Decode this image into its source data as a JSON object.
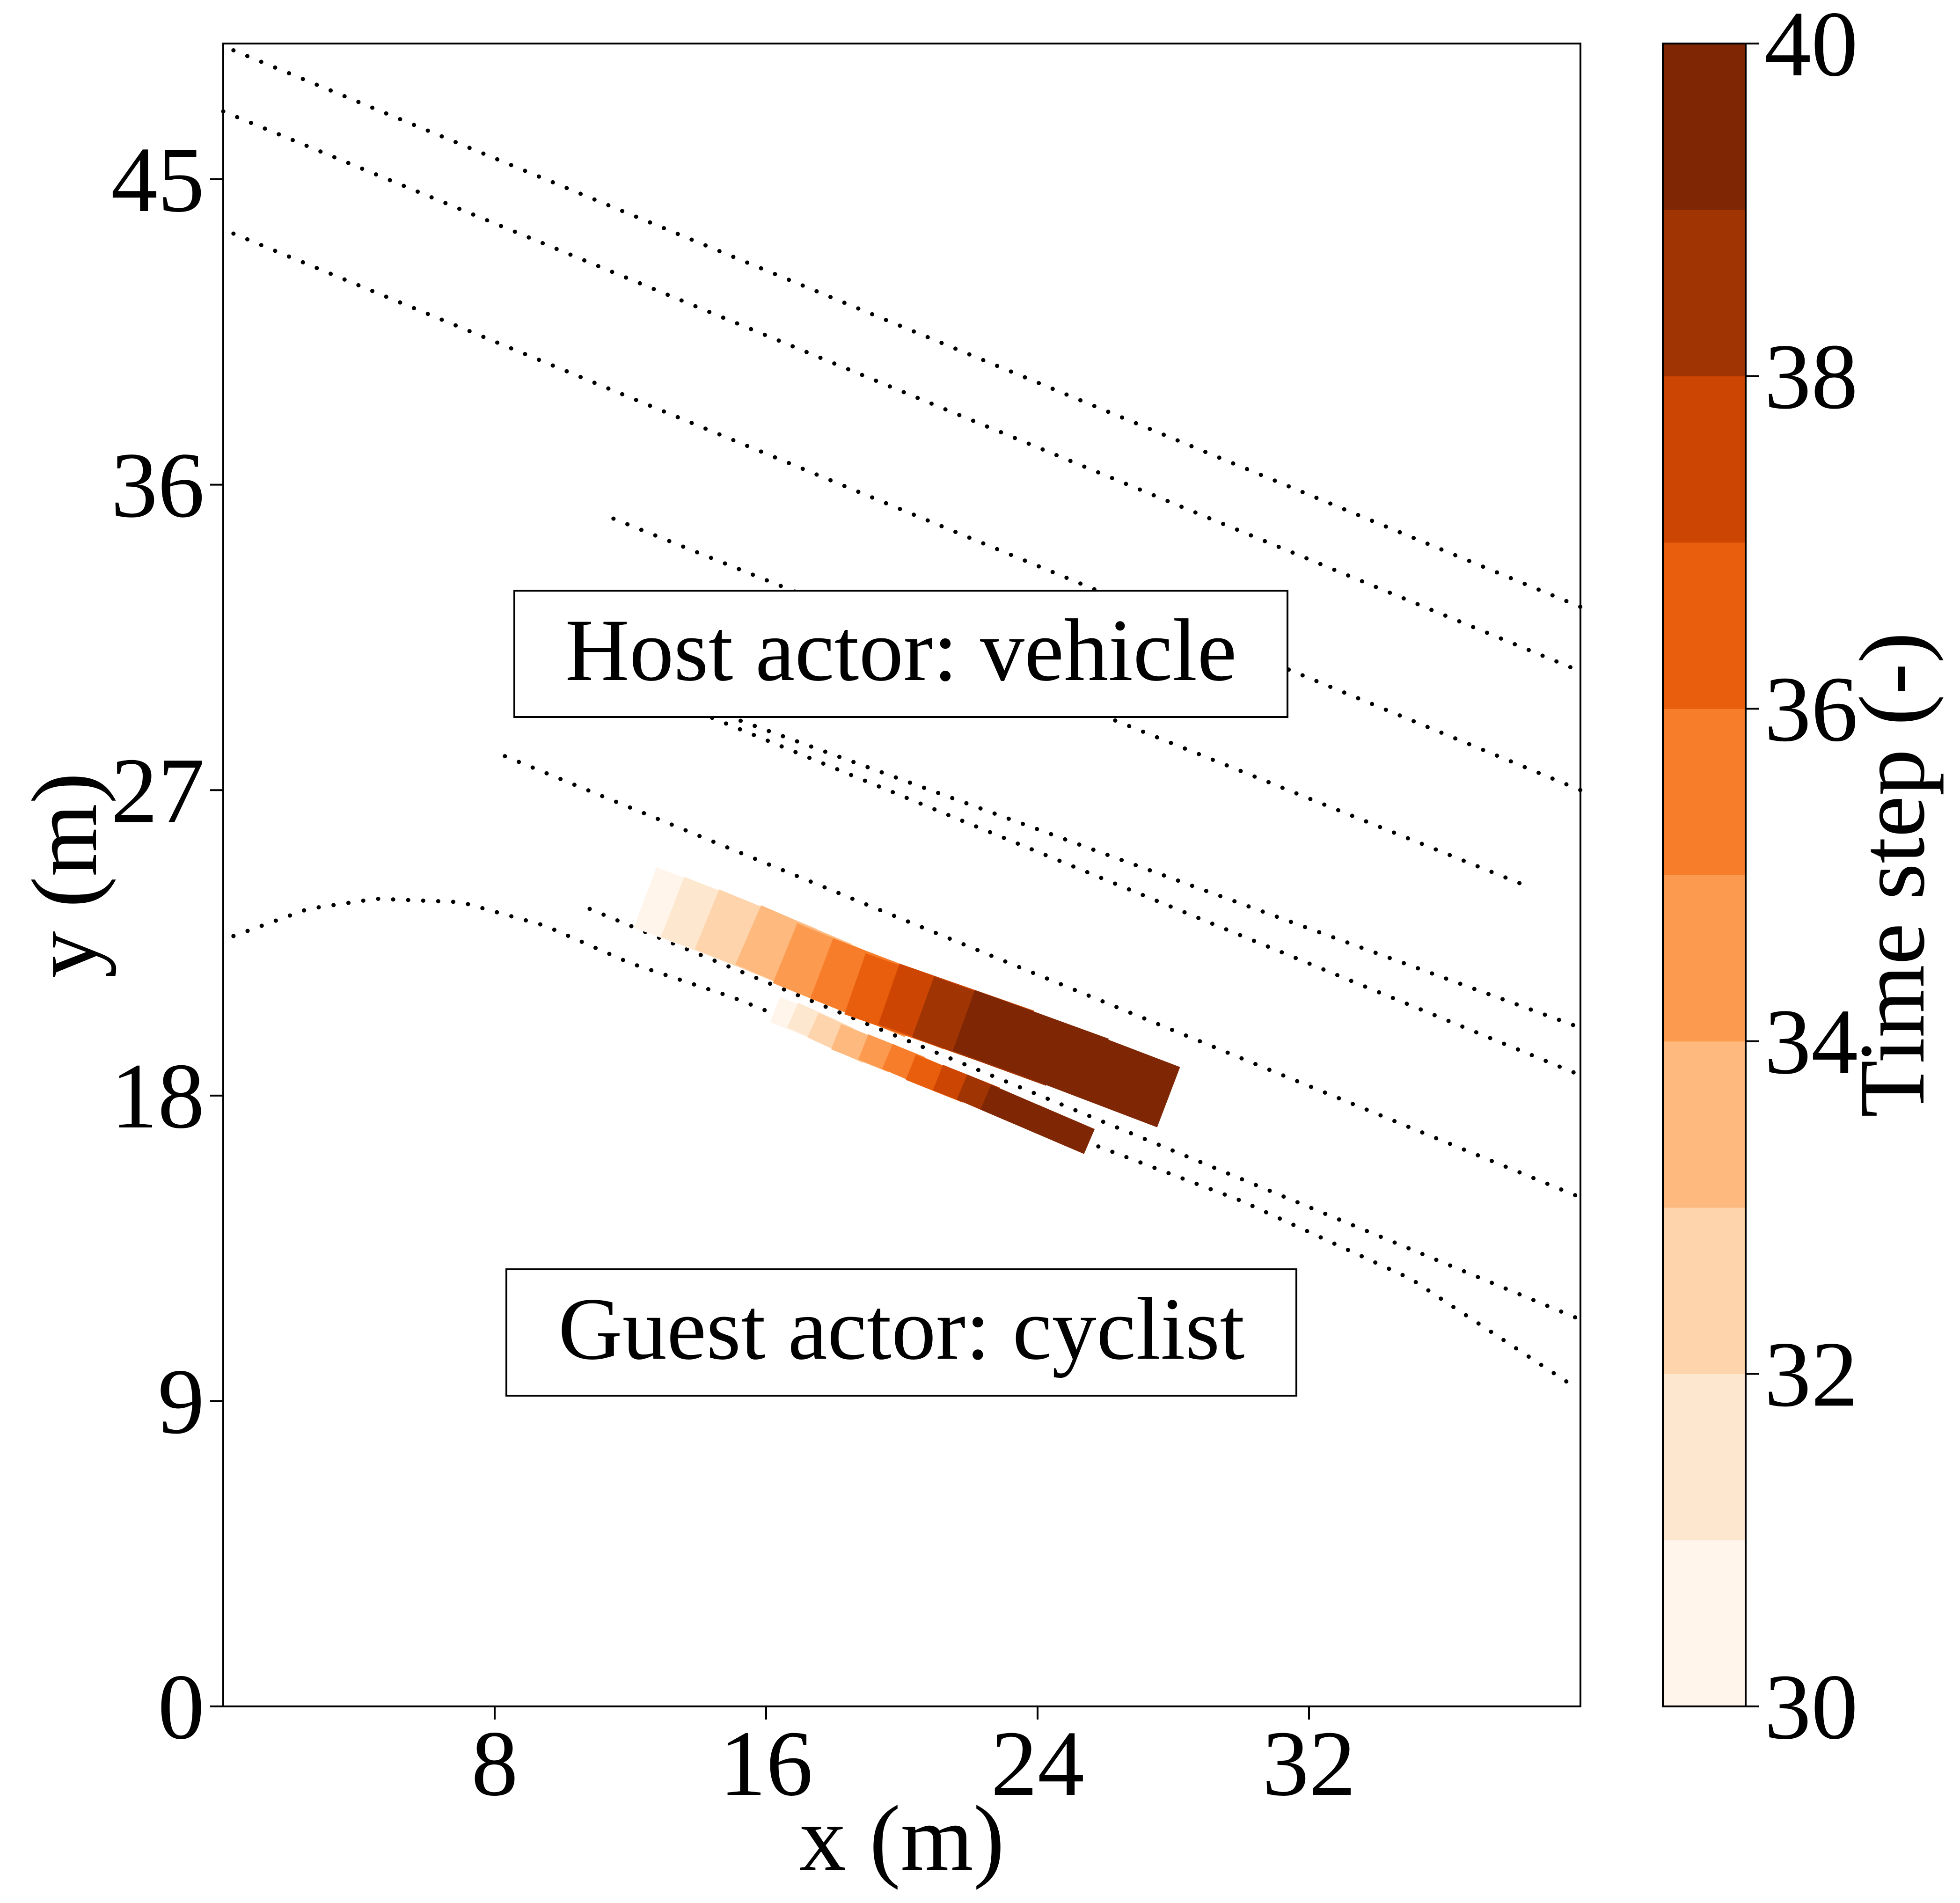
{
  "chart_data": {
    "type": "scatter",
    "title": "",
    "xlabel": "x (m)",
    "ylabel": "y (m)",
    "xlim": [
      0,
      40
    ],
    "ylim": [
      0,
      49
    ],
    "xticks": [
      8,
      16,
      24,
      32
    ],
    "yticks": [
      0,
      9,
      18,
      27,
      36,
      45
    ],
    "xtick_labels": [
      "8",
      "16",
      "24",
      "32"
    ],
    "ytick_labels": [
      "0",
      "9",
      "18",
      "27",
      "36",
      "45"
    ],
    "grid": false,
    "annotations": [
      {
        "text": "Host actor: vehicle",
        "x": 20,
        "y": 31.5
      },
      {
        "text": "Guest actor: cyclist",
        "x": 20,
        "y": 11.5
      }
    ],
    "road_lines": [
      {
        "name": "",
        "style": "dotted",
        "x": [
          0.3,
          40
        ],
        "y": [
          48.8,
          32.4
        ]
      },
      {
        "name": "",
        "style": "dotted",
        "x": [
          0,
          40
        ],
        "y": [
          47.0,
          30.5
        ]
      },
      {
        "name": "",
        "style": "dotted",
        "x": [
          0.3,
          40
        ],
        "y": [
          43.4,
          27.0
        ]
      },
      {
        "name": "",
        "style": "dotted",
        "x": [
          11.5,
          38.6
        ],
        "y": [
          35.0,
          24.1
        ]
      },
      {
        "name": "",
        "style": "dotted",
        "x": [
          14.0,
          40
        ],
        "y": [
          29.5,
          20.0
        ]
      },
      {
        "name": "",
        "style": "dotted",
        "x": [
          14.0,
          40
        ],
        "y": [
          29.3,
          18.6
        ]
      },
      {
        "name": "",
        "style": "dotted",
        "x": [
          8.3,
          40
        ],
        "y": [
          28.0,
          15.0
        ]
      },
      {
        "name": "",
        "style": "dotted",
        "x": [
          10.8,
          40
        ],
        "y": [
          23.5,
          11.4
        ]
      },
      {
        "name": "",
        "style": "dotted",
        "x": [
          0.3,
          2.5,
          4.5,
          7.0,
          9.5,
          12.0,
          15.0,
          20.0,
          25.0,
          30.0,
          35.0,
          39.7
        ],
        "y": [
          22.7,
          23.5,
          23.8,
          23.7,
          23.0,
          21.9,
          20.9,
          18.9,
          16.8,
          14.9,
          12.6,
          9.5
        ]
      }
    ],
    "vehicle_footprints": {
      "name": "Host actor: vehicle",
      "time_step": [
        30,
        31,
        32,
        33,
        34,
        35,
        36,
        37,
        38,
        39,
        40
      ],
      "x": [
        14.4,
        15.2,
        16.2,
        17.4,
        18.5,
        19.6,
        20.6,
        21.6,
        22.6,
        23.8,
        25.9
      ],
      "y": [
        23.1,
        22.8,
        22.4,
        21.9,
        21.4,
        21.0,
        20.6,
        20.3,
        19.9,
        19.5,
        18.7
      ],
      "length": 4.2,
      "width": 1.9
    },
    "cyclist_footprints": {
      "name": "Guest actor: cyclist",
      "time_step": [
        30,
        31,
        32,
        33,
        34,
        35,
        36,
        37,
        38,
        39,
        40
      ],
      "x": [
        17.1,
        17.6,
        18.2,
        18.9,
        19.7,
        20.4,
        21.1,
        21.9,
        22.6,
        23.3,
        24.7
      ],
      "y": [
        20.2,
        20.0,
        19.7,
        19.4,
        19.1,
        18.8,
        18.5,
        18.2,
        17.9,
        17.6,
        17.0
      ],
      "length": 1.8,
      "width": 0.8
    },
    "colorbar": {
      "label": "Time step (-)",
      "min": 30,
      "max": 40,
      "ticks": [
        30,
        32,
        34,
        36,
        38,
        40
      ],
      "tick_labels": [
        "30",
        "32",
        "34",
        "36",
        "38",
        "40"
      ],
      "levels": [
        30,
        31,
        32,
        33,
        34,
        35,
        36,
        37,
        38,
        39,
        40
      ],
      "colors": [
        "#fff5eb",
        "#fee7cf",
        "#fdd4ab",
        "#fdb97e",
        "#fc9b50",
        "#f77d2a",
        "#e85e0d",
        "#cc4502",
        "#a03503",
        "#7f2704"
      ]
    }
  }
}
